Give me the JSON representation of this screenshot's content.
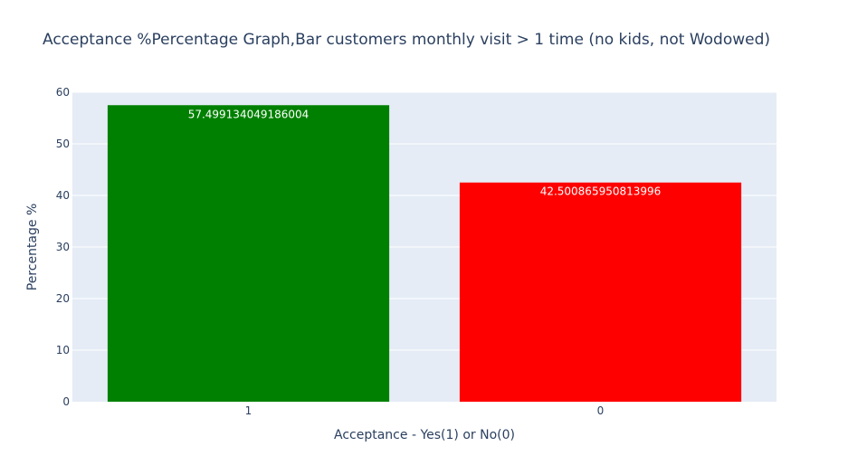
{
  "chart_data": {
    "type": "bar",
    "title": "Acceptance %Percentage Graph,Bar customers monthly visit > 1 time (no kids, not Wodowed)",
    "xlabel": "Acceptance - Yes(1) or No(0)",
    "ylabel": "Percentage %",
    "categories": [
      "1",
      "0"
    ],
    "values": [
      57.499134049186004,
      42.500865950813996
    ],
    "data_labels": [
      "57.499134049186004",
      "42.500865950813996"
    ],
    "bar_colors": [
      "#008000",
      "#ff0000"
    ],
    "ylim": [
      0,
      60
    ],
    "yticks": [
      0,
      10,
      20,
      30,
      40,
      50,
      60
    ],
    "grid": true,
    "plot_background": "#e5ecf6"
  }
}
